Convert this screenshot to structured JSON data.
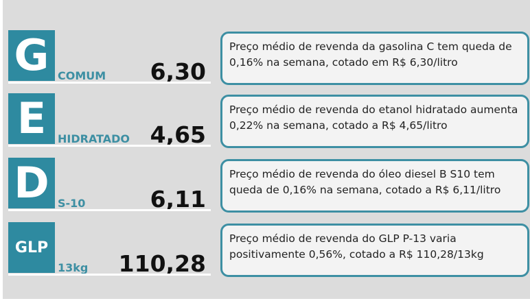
{
  "accent_color": "#2e8aa0",
  "items": [
    {
      "letter": "G",
      "label": "COMUM",
      "price": "6,30",
      "description": "Preço médio de revenda da gasolina C tem queda de 0,16% na semana, cotado em R$ 6,30/litro"
    },
    {
      "letter": "E",
      "label": "HIDRATADO",
      "price": "4,65",
      "description": "Preço médio de revenda do etanol hidratado aumenta 0,22% na semana, cotado a R$ 4,65/litro"
    },
    {
      "letter": "D",
      "label": "S-10",
      "price": "6,11",
      "description": "Preço médio de revenda do óleo diesel B S10 tem queda de 0,16% na semana, cotado a R$ 6,11/litro"
    },
    {
      "letter": "GLP",
      "label": "13kg",
      "price": "110,28",
      "description": "Preço médio de revenda do GLP P-13 varia positivamente 0,56%, cotado a R$ 110,28/13kg"
    }
  ]
}
